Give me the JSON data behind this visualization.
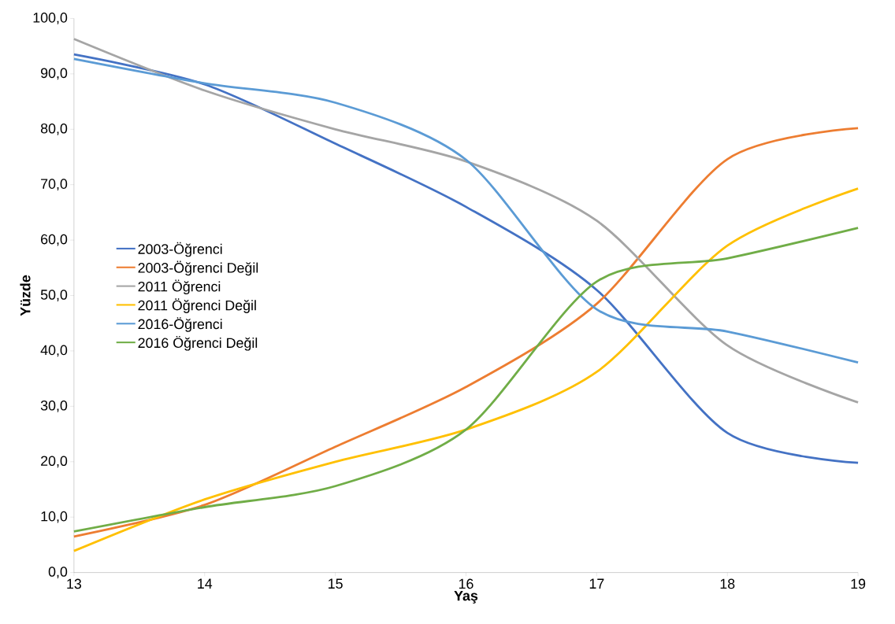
{
  "chart_data": {
    "type": "line",
    "xlabel": "Yaş",
    "ylabel": "Yüzde",
    "x": [
      13,
      14,
      15,
      16,
      17,
      18,
      19
    ],
    "xlim": [
      13,
      19
    ],
    "xticks": [
      13,
      14,
      15,
      16,
      17,
      18,
      19
    ],
    "ylim": [
      0,
      100
    ],
    "yticks": [
      {
        "value": 0,
        "label": "0,0"
      },
      {
        "value": 10,
        "label": "10,0"
      },
      {
        "value": 20,
        "label": "20,0"
      },
      {
        "value": 30,
        "label": "30,0"
      },
      {
        "value": 40,
        "label": "40,0"
      },
      {
        "value": 50,
        "label": "50,0"
      },
      {
        "value": 60,
        "label": "60,0"
      },
      {
        "value": 70,
        "label": "70,0"
      },
      {
        "value": 80,
        "label": "80,0"
      },
      {
        "value": 90,
        "label": "90,0"
      },
      {
        "value": 100,
        "label": "100,0"
      }
    ],
    "legend": "left",
    "marker": "none",
    "line_style": "solid",
    "series": [
      {
        "name": "2003-Öğrenci",
        "color": "#4472c4",
        "values": [
          93.5,
          88.1,
          77.4,
          66.0,
          51.0,
          25.2,
          19.8
        ]
      },
      {
        "name": "2003-Öğrenci Değil",
        "color": "#ed7d31",
        "values": [
          6.5,
          12.2,
          22.7,
          33.5,
          48.5,
          74.6,
          80.2
        ]
      },
      {
        "name": "2011 Öğrenci",
        "color": "#a5a5a5",
        "values": [
          96.3,
          87.0,
          80.0,
          74.2,
          63.5,
          41.0,
          30.7
        ]
      },
      {
        "name": "2011 Öğrenci Değil",
        "color": "#ffc000",
        "values": [
          3.9,
          13.2,
          20.0,
          25.8,
          36.2,
          59.0,
          69.3
        ]
      },
      {
        "name": "2016-Öğrenci",
        "color": "#5b9bd5",
        "values": [
          92.7,
          88.3,
          84.8,
          74.5,
          47.5,
          43.5,
          37.9
        ]
      },
      {
        "name": "2016 Öğrenci Değil",
        "color": "#70ad47",
        "values": [
          7.4,
          11.8,
          15.6,
          25.8,
          52.5,
          56.7,
          62.2
        ]
      }
    ]
  }
}
